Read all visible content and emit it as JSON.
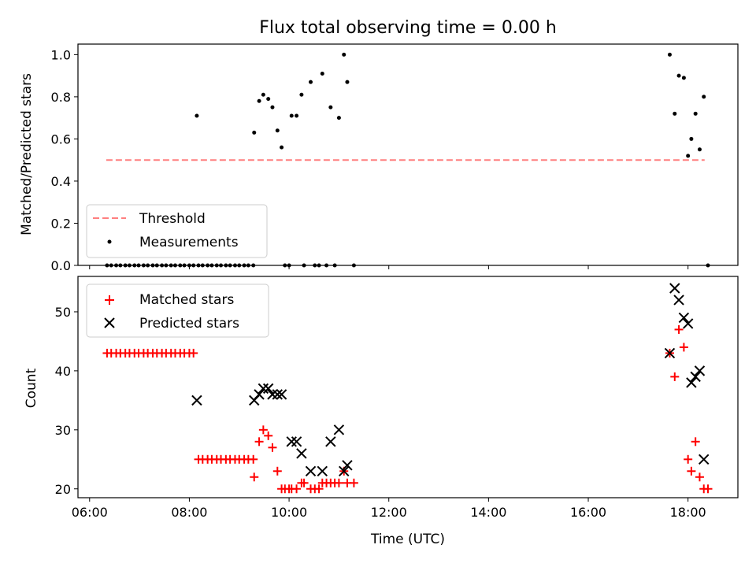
{
  "chart_data": [
    {
      "type": "scatter",
      "title": "Flux total observing time = 0.00 h",
      "xlabel": "",
      "ylabel": "Matched/Predicted stars",
      "ylim": [
        0,
        1.05
      ],
      "xlim": [
        "05:46",
        "19:00"
      ],
      "xticks": [
        "06:00",
        "08:00",
        "10:00",
        "12:00",
        "14:00",
        "16:00",
        "18:00"
      ],
      "yticks": [
        "0.0",
        "0.2",
        "0.4",
        "0.6",
        "0.8",
        "1.0"
      ],
      "legend": "lower-left",
      "colors": {
        "threshold": "#ff7f7f",
        "measurements": "#000000"
      },
      "series": [
        {
          "name": "Threshold",
          "style": "dashed-line",
          "points": [
            [
              "06:20",
              0.5
            ],
            [
              "18:20",
              0.5
            ]
          ]
        },
        {
          "name": "Measurements",
          "style": "dot",
          "points": [
            [
              "06:21",
              0.0
            ],
            [
              "06:26",
              0.0
            ],
            [
              "06:32",
              0.0
            ],
            [
              "06:37",
              0.0
            ],
            [
              "06:43",
              0.0
            ],
            [
              "06:48",
              0.0
            ],
            [
              "06:54",
              0.0
            ],
            [
              "06:59",
              0.0
            ],
            [
              "07:05",
              0.0
            ],
            [
              "07:10",
              0.0
            ],
            [
              "07:16",
              0.0
            ],
            [
              "07:21",
              0.0
            ],
            [
              "07:27",
              0.0
            ],
            [
              "07:32",
              0.0
            ],
            [
              "07:38",
              0.0
            ],
            [
              "07:43",
              0.0
            ],
            [
              "07:49",
              0.0
            ],
            [
              "07:54",
              0.0
            ],
            [
              "08:00",
              0.0
            ],
            [
              "08:05",
              0.0
            ],
            [
              "08:09",
              0.71
            ],
            [
              "08:11",
              0.0
            ],
            [
              "08:16",
              0.0
            ],
            [
              "08:22",
              0.0
            ],
            [
              "08:27",
              0.0
            ],
            [
              "08:33",
              0.0
            ],
            [
              "08:38",
              0.0
            ],
            [
              "08:44",
              0.0
            ],
            [
              "08:49",
              0.0
            ],
            [
              "08:55",
              0.0
            ],
            [
              "09:00",
              0.0
            ],
            [
              "09:06",
              0.0
            ],
            [
              "09:11",
              0.0
            ],
            [
              "09:17",
              0.0
            ],
            [
              "09:18",
              0.63
            ],
            [
              "09:24",
              0.78
            ],
            [
              "09:29",
              0.81
            ],
            [
              "09:35",
              0.79
            ],
            [
              "09:40",
              0.75
            ],
            [
              "09:46",
              0.64
            ],
            [
              "09:51",
              0.56
            ],
            [
              "09:55",
              0.0
            ],
            [
              "10:00",
              0.0
            ],
            [
              "10:03",
              0.71
            ],
            [
              "10:09",
              0.71
            ],
            [
              "10:15",
              0.81
            ],
            [
              "10:18",
              0.0
            ],
            [
              "10:26",
              0.87
            ],
            [
              "10:31",
              0.0
            ],
            [
              "10:36",
              0.0
            ],
            [
              "10:40",
              0.91
            ],
            [
              "10:45",
              0.0
            ],
            [
              "10:50",
              0.75
            ],
            [
              "10:55",
              0.0
            ],
            [
              "11:00",
              0.7
            ],
            [
              "11:06",
              1.0
            ],
            [
              "11:10",
              0.87
            ],
            [
              "11:18",
              0.0
            ],
            [
              "17:38",
              1.0
            ],
            [
              "17:44",
              0.72
            ],
            [
              "17:49",
              0.9
            ],
            [
              "17:55",
              0.89
            ],
            [
              "18:00",
              0.52
            ],
            [
              "18:04",
              0.6
            ],
            [
              "18:09",
              0.72
            ],
            [
              "18:14",
              0.55
            ],
            [
              "18:19",
              0.8
            ],
            [
              "18:24",
              0.0
            ]
          ]
        }
      ]
    },
    {
      "type": "scatter",
      "title": "",
      "xlabel": "Time (UTC)",
      "ylabel": "Count",
      "ylim": [
        18.5,
        56
      ],
      "xlim": [
        "05:46",
        "19:00"
      ],
      "xticks": [
        "06:00",
        "08:00",
        "10:00",
        "12:00",
        "14:00",
        "16:00",
        "18:00"
      ],
      "yticks": [
        "20",
        "30",
        "40",
        "50"
      ],
      "legend": "top-left",
      "colors": {
        "matched": "#ff0000",
        "predicted": "#000000"
      },
      "series": [
        {
          "name": "Matched stars",
          "style": "plus",
          "points": [
            [
              "06:21",
              43
            ],
            [
              "06:26",
              43
            ],
            [
              "06:32",
              43
            ],
            [
              "06:37",
              43
            ],
            [
              "06:43",
              43
            ],
            [
              "06:48",
              43
            ],
            [
              "06:54",
              43
            ],
            [
              "06:59",
              43
            ],
            [
              "07:05",
              43
            ],
            [
              "07:10",
              43
            ],
            [
              "07:16",
              43
            ],
            [
              "07:21",
              43
            ],
            [
              "07:27",
              43
            ],
            [
              "07:32",
              43
            ],
            [
              "07:38",
              43
            ],
            [
              "07:43",
              43
            ],
            [
              "07:49",
              43
            ],
            [
              "07:54",
              43
            ],
            [
              "08:00",
              43
            ],
            [
              "08:05",
              43
            ],
            [
              "08:11",
              25
            ],
            [
              "08:16",
              25
            ],
            [
              "08:22",
              25
            ],
            [
              "08:27",
              25
            ],
            [
              "08:33",
              25
            ],
            [
              "08:38",
              25
            ],
            [
              "08:44",
              25
            ],
            [
              "08:49",
              25
            ],
            [
              "08:55",
              25
            ],
            [
              "09:00",
              25
            ],
            [
              "09:06",
              25
            ],
            [
              "09:11",
              25
            ],
            [
              "09:17",
              25
            ],
            [
              "09:18",
              22
            ],
            [
              "09:24",
              28
            ],
            [
              "09:29",
              30
            ],
            [
              "09:35",
              29
            ],
            [
              "09:40",
              27
            ],
            [
              "09:46",
              23
            ],
            [
              "09:51",
              20
            ],
            [
              "09:55",
              20
            ],
            [
              "10:00",
              20
            ],
            [
              "10:03",
              20
            ],
            [
              "10:09",
              20
            ],
            [
              "10:15",
              21
            ],
            [
              "10:18",
              21
            ],
            [
              "10:26",
              20
            ],
            [
              "10:31",
              20
            ],
            [
              "10:36",
              20
            ],
            [
              "10:40",
              21
            ],
            [
              "10:45",
              21
            ],
            [
              "10:50",
              21
            ],
            [
              "10:55",
              21
            ],
            [
              "11:00",
              21
            ],
            [
              "11:06",
              23
            ],
            [
              "11:10",
              21
            ],
            [
              "11:18",
              21
            ],
            [
              "17:38",
              43
            ],
            [
              "17:44",
              39
            ],
            [
              "17:49",
              47
            ],
            [
              "17:55",
              44
            ],
            [
              "18:00",
              25
            ],
            [
              "18:04",
              23
            ],
            [
              "18:09",
              28
            ],
            [
              "18:14",
              22
            ],
            [
              "18:19",
              20
            ],
            [
              "18:24",
              20
            ]
          ]
        },
        {
          "name": "Predicted stars",
          "style": "x",
          "points": [
            [
              "08:09",
              35
            ],
            [
              "09:18",
              35
            ],
            [
              "09:24",
              36
            ],
            [
              "09:29",
              37
            ],
            [
              "09:35",
              37
            ],
            [
              "09:40",
              36
            ],
            [
              "09:46",
              36
            ],
            [
              "09:51",
              36
            ],
            [
              "10:03",
              28
            ],
            [
              "10:09",
              28
            ],
            [
              "10:15",
              26
            ],
            [
              "10:26",
              23
            ],
            [
              "10:40",
              23
            ],
            [
              "10:50",
              28
            ],
            [
              "11:00",
              30
            ],
            [
              "11:06",
              23
            ],
            [
              "11:10",
              24
            ],
            [
              "17:38",
              43
            ],
            [
              "17:44",
              54
            ],
            [
              "17:49",
              52
            ],
            [
              "17:55",
              49
            ],
            [
              "18:00",
              48
            ],
            [
              "18:04",
              38
            ],
            [
              "18:09",
              39
            ],
            [
              "18:14",
              40
            ],
            [
              "18:19",
              25
            ]
          ]
        }
      ]
    }
  ]
}
